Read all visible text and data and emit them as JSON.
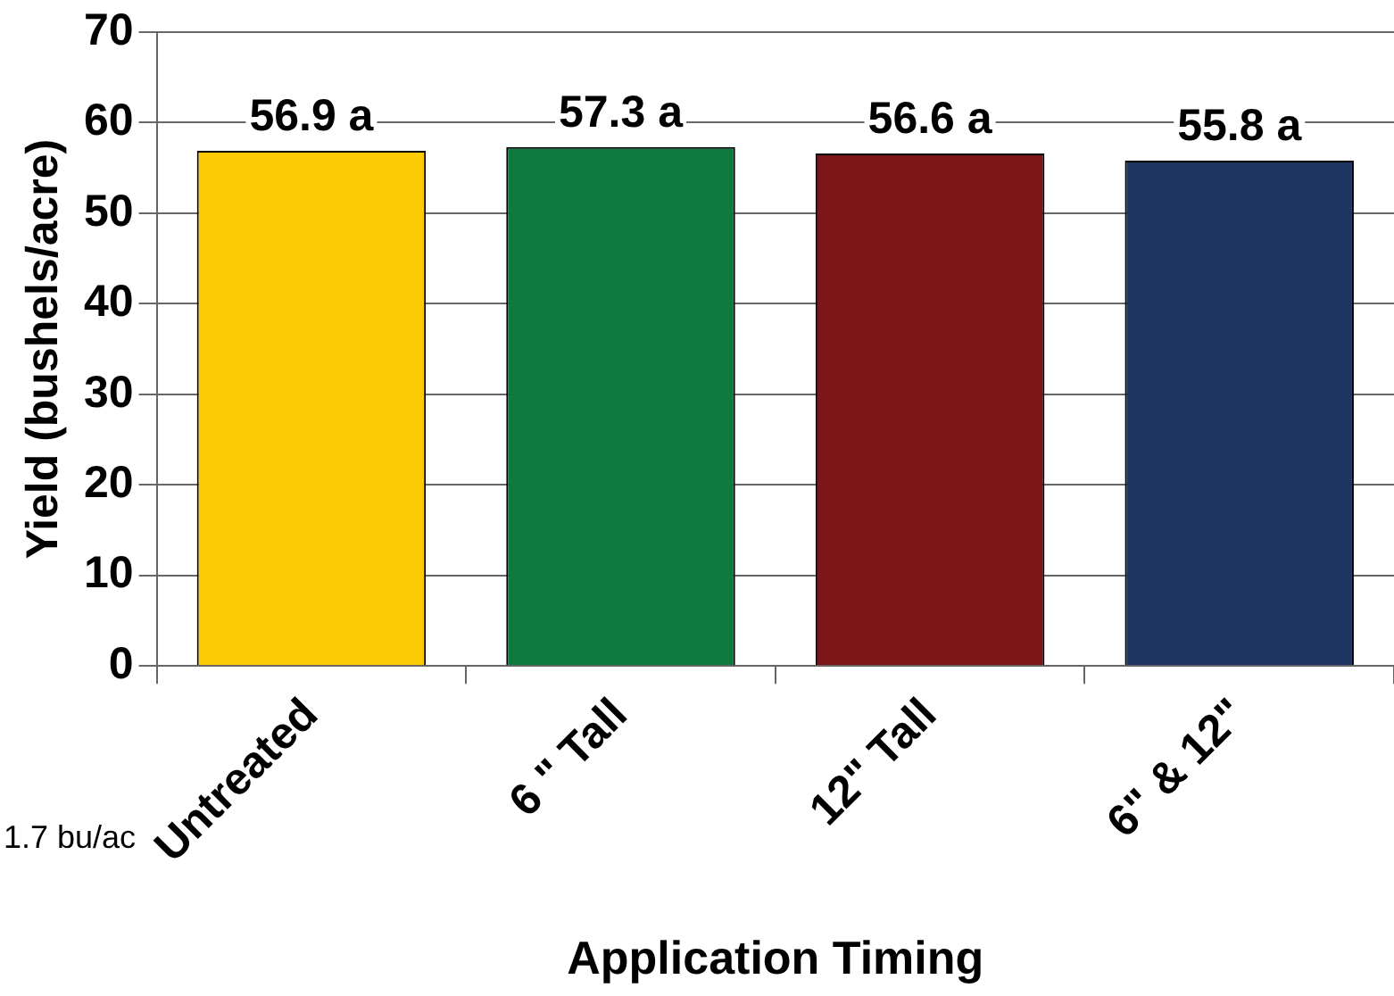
{
  "chart_data": {
    "type": "bar",
    "xlabel": "Application Timing",
    "ylabel": "Yield (bushels/acre)",
    "categories": [
      "Untreated",
      "6 \" Tall",
      "12\" Tall",
      "6\" & 12\""
    ],
    "values": [
      56.9,
      57.3,
      56.6,
      55.8
    ],
    "colors": [
      "#fccb06",
      "#0f7a3d",
      "#7b1518",
      "#1e3562"
    ],
    "value_labels": [
      "56.9 a",
      "57.3 a",
      "56.6 a",
      "55.8 a"
    ],
    "ylim": [
      0,
      70
    ],
    "yticks": [
      0,
      10,
      20,
      30,
      40,
      50,
      60,
      70
    ],
    "grid": "y",
    "annotations": [
      "1.7 bu/ac"
    ]
  }
}
